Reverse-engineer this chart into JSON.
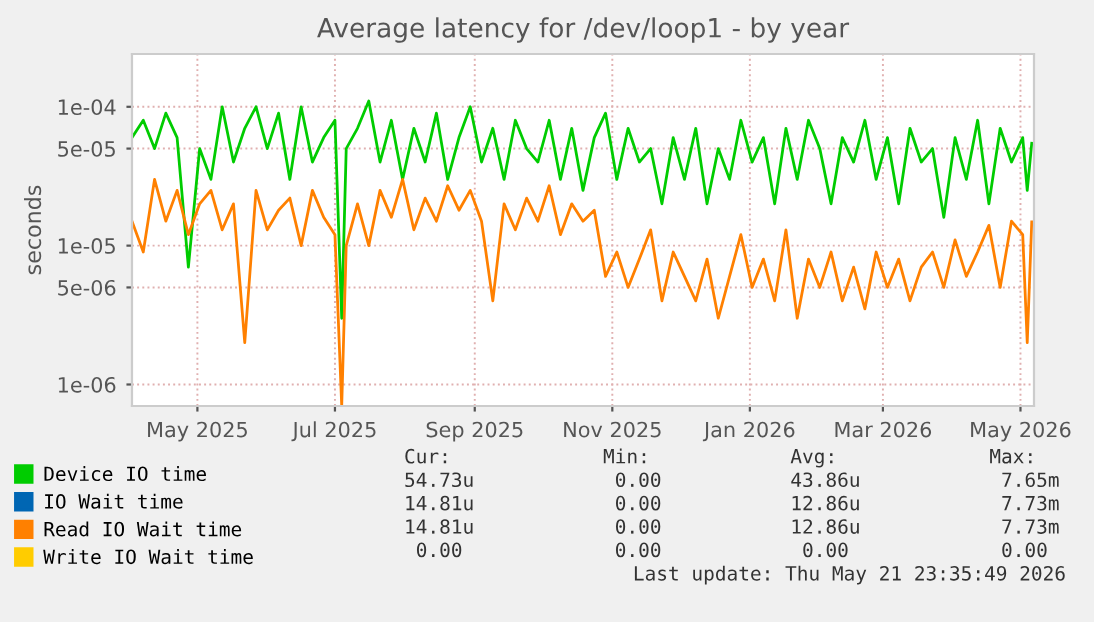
{
  "chart_data": {
    "type": "line",
    "title": "Average latency for /dev/loop1 - by year",
    "ylabel": "seconds",
    "x": [
      "2025-04-17",
      "2025-04-22",
      "2025-04-27",
      "2025-05-02",
      "2025-05-07",
      "2025-05-12",
      "2025-05-17",
      "2025-05-22",
      "2025-05-27",
      "2025-06-01",
      "2025-06-06",
      "2025-06-11",
      "2025-06-16",
      "2025-06-21",
      "2025-06-26",
      "2025-07-01",
      "2025-07-06",
      "2025-07-11",
      "2025-07-16",
      "2025-07-19",
      "2025-07-21",
      "2025-07-26",
      "2025-07-31",
      "2025-08-05",
      "2025-08-10",
      "2025-08-15",
      "2025-08-20",
      "2025-08-25",
      "2025-08-30",
      "2025-09-04",
      "2025-09-09",
      "2025-09-14",
      "2025-09-19",
      "2025-09-24",
      "2025-09-29",
      "2025-10-04",
      "2025-10-09",
      "2025-10-14",
      "2025-10-19",
      "2025-10-24",
      "2025-10-29",
      "2025-11-03",
      "2025-11-08",
      "2025-11-13",
      "2025-11-18",
      "2025-11-23",
      "2025-11-28",
      "2025-12-03",
      "2025-12-08",
      "2025-12-13",
      "2025-12-18",
      "2025-12-23",
      "2025-12-28",
      "2026-01-02",
      "2026-01-07",
      "2026-01-12",
      "2026-01-17",
      "2026-01-22",
      "2026-01-27",
      "2026-02-01",
      "2026-02-06",
      "2026-02-11",
      "2026-02-16",
      "2026-02-21",
      "2026-02-26",
      "2026-03-03",
      "2026-03-08",
      "2026-03-13",
      "2026-03-18",
      "2026-03-23",
      "2026-03-28",
      "2026-04-02",
      "2026-04-07",
      "2026-04-12",
      "2026-04-17",
      "2026-04-22",
      "2026-04-27",
      "2026-05-02",
      "2026-05-07",
      "2026-05-12",
      "2026-05-17",
      "2026-05-19",
      "2026-05-21"
    ],
    "series": [
      {
        "name": "Device IO time",
        "color": "#00cc00",
        "values": [
          6e-05,
          8e-05,
          5e-05,
          9e-05,
          6e-05,
          7e-06,
          5e-05,
          3e-05,
          0.0001,
          4e-05,
          7e-05,
          0.0001,
          5e-05,
          9e-05,
          3e-05,
          0.0001,
          4e-05,
          6e-05,
          8e-05,
          3e-06,
          5e-05,
          7e-05,
          0.00011,
          4e-05,
          8e-05,
          3e-05,
          7e-05,
          4e-05,
          9e-05,
          3e-05,
          6e-05,
          0.0001,
          4e-05,
          7e-05,
          3e-05,
          8e-05,
          5e-05,
          4e-05,
          8e-05,
          3e-05,
          7e-05,
          2.5e-05,
          6e-05,
          9e-05,
          3e-05,
          7e-05,
          4e-05,
          5e-05,
          2e-05,
          6e-05,
          3e-05,
          7e-05,
          2e-05,
          5e-05,
          3e-05,
          8e-05,
          4e-05,
          6e-05,
          2e-05,
          7e-05,
          3e-05,
          8e-05,
          5e-05,
          2e-05,
          6e-05,
          4e-05,
          8e-05,
          3e-05,
          6e-05,
          2e-05,
          7e-05,
          4e-05,
          5e-05,
          1.6e-05,
          6e-05,
          3e-05,
          8e-05,
          2e-05,
          7e-05,
          4e-05,
          6e-05,
          2.5e-05,
          5.473e-05
        ]
      },
      {
        "name": "IO Wait time",
        "color": "#0066b3",
        "values": [
          null,
          null,
          null,
          null,
          null,
          null,
          null,
          null,
          null,
          null,
          null,
          null,
          null,
          null,
          null,
          null,
          null,
          null,
          null,
          null,
          null,
          null,
          null,
          null,
          null,
          null,
          null,
          null,
          null,
          null,
          null,
          null,
          null,
          null,
          null,
          null,
          null,
          null,
          null,
          null,
          null,
          null,
          null,
          null,
          null,
          null,
          null,
          null,
          null,
          null,
          null,
          null,
          null,
          null,
          null,
          null,
          null,
          null,
          null,
          null,
          null,
          null,
          null,
          null,
          null,
          null,
          null,
          null,
          null,
          null,
          null,
          null,
          null,
          null,
          null,
          null,
          null,
          null,
          null,
          null,
          null,
          null,
          null
        ]
      },
      {
        "name": "Read IO Wait time",
        "color": "#ff8000",
        "values": [
          1.5e-05,
          9e-06,
          3e-05,
          1.5e-05,
          2.5e-05,
          1.2e-05,
          2e-05,
          2.5e-05,
          1.3e-05,
          2e-05,
          2e-06,
          2.5e-05,
          1.3e-05,
          1.8e-05,
          2.2e-05,
          1e-05,
          2.5e-05,
          1.6e-05,
          1.2e-05,
          7e-07,
          1e-05,
          2e-05,
          1e-05,
          2.5e-05,
          1.6e-05,
          3e-05,
          1.3e-05,
          2.2e-05,
          1.5e-05,
          2.7e-05,
          1.8e-05,
          2.5e-05,
          1.5e-05,
          4e-06,
          2e-05,
          1.3e-05,
          2.2e-05,
          1.5e-05,
          2.7e-05,
          1.2e-05,
          2e-05,
          1.5e-05,
          1.8e-05,
          6e-06,
          9e-06,
          5e-06,
          8e-06,
          1.3e-05,
          4e-06,
          9e-06,
          6e-06,
          4e-06,
          8e-06,
          3e-06,
          6e-06,
          1.2e-05,
          5e-06,
          8e-06,
          4e-06,
          1.3e-05,
          3e-06,
          8e-06,
          5e-06,
          9e-06,
          4e-06,
          7e-06,
          3.5e-06,
          9e-06,
          5e-06,
          8e-06,
          4e-06,
          7e-06,
          9e-06,
          5e-06,
          1.1e-05,
          6e-06,
          9e-06,
          1.4e-05,
          5e-06,
          1.5e-05,
          1.2e-05,
          2e-06,
          1.481e-05
        ]
      },
      {
        "name": "Write IO Wait time",
        "color": "#ffcc00",
        "values": [
          null,
          null,
          null,
          null,
          null,
          null,
          null,
          null,
          null,
          null,
          null,
          null,
          null,
          null,
          null,
          null,
          null,
          null,
          null,
          null,
          null,
          null,
          null,
          null,
          null,
          null,
          null,
          null,
          null,
          null,
          null,
          null,
          null,
          null,
          null,
          null,
          null,
          null,
          null,
          null,
          null,
          null,
          null,
          null,
          null,
          null,
          null,
          null,
          null,
          null,
          null,
          null,
          null,
          null,
          null,
          null,
          null,
          null,
          null,
          null,
          null,
          null,
          null,
          null,
          null,
          null,
          null,
          null,
          null,
          null,
          null,
          null,
          null,
          null,
          null,
          null,
          null,
          null,
          null,
          null,
          null,
          null,
          null
        ]
      }
    ],
    "log": true,
    "xlim": [
      "2025-04-17",
      "2026-05-22"
    ],
    "ylim": [
      7e-07,
      0.00024
    ],
    "xticks": [
      {
        "value": "2025-05-16",
        "label": "May 2025"
      },
      {
        "value": "2025-07-16",
        "label": "Jul 2025"
      },
      {
        "value": "2025-09-16",
        "label": "Sep 2025"
      },
      {
        "value": "2025-11-16",
        "label": "Nov 2025"
      },
      {
        "value": "2026-01-16",
        "label": "Jan 2026"
      },
      {
        "value": "2026-03-16",
        "label": "Mar 2026"
      },
      {
        "value": "2026-05-16",
        "label": "May 2026"
      }
    ],
    "yticks": [
      {
        "value": 1e-06,
        "label": "1e-06"
      },
      {
        "value": 5e-06,
        "label": "5e-06"
      },
      {
        "value": 1e-05,
        "label": "1e-05"
      },
      {
        "value": 5e-05,
        "label": "5e-05"
      },
      {
        "value": 0.0001,
        "label": "1e-04"
      }
    ],
    "grid": true,
    "legend": "bottom",
    "marker": "none",
    "line_style": "solid",
    "annotations": [
      "Cur:             Min:            Avg:             Max:",
      "54.73u            0.00           43.86u            7.65m",
      "14.81u            0.00           12.86u            7.73m",
      "14.81u            0.00           12.86u            7.73m",
      " 0.00             0.00            0.00             0.00",
      "Last update: Thu May 21 23:35:49 2026"
    ]
  }
}
